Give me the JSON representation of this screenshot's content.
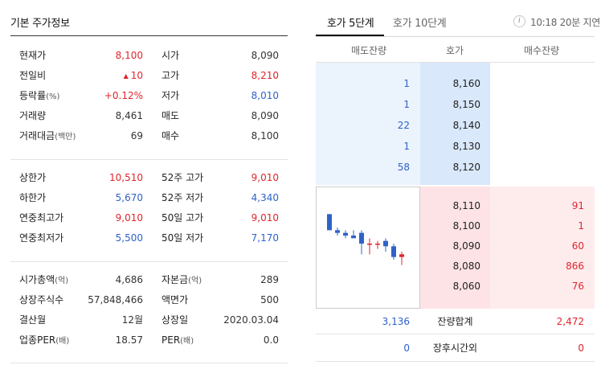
{
  "basic": {
    "title": "기본 주가정보",
    "section1": [
      {
        "l1": "현재가",
        "u1": "",
        "v1": "8,100",
        "c1": "red",
        "l2": "시가",
        "u2": "",
        "v2": "8,090",
        "c2": "dark"
      },
      {
        "l1": "전일비",
        "u1": "",
        "v1": "10",
        "c1": "red",
        "tri": "▲",
        "l2": "고가",
        "u2": "",
        "v2": "8,210",
        "c2": "red"
      },
      {
        "l1": "등락률",
        "u1": "(%)",
        "v1": "+0.12%",
        "c1": "red",
        "l2": "저가",
        "u2": "",
        "v2": "8,010",
        "c2": "blue"
      },
      {
        "l1": "거래량",
        "u1": "",
        "v1": "8,461",
        "c1": "dark",
        "l2": "매도",
        "u2": "",
        "v2": "8,090",
        "c2": "dark"
      },
      {
        "l1": "거래대금",
        "u1": "(백만)",
        "v1": "69",
        "c1": "dark",
        "l2": "매수",
        "u2": "",
        "v2": "8,100",
        "c2": "dark"
      }
    ],
    "section2": [
      {
        "l1": "상한가",
        "u1": "",
        "v1": "10,510",
        "c1": "red",
        "l2": "52주 고가",
        "u2": "",
        "v2": "9,010",
        "c2": "red"
      },
      {
        "l1": "하한가",
        "u1": "",
        "v1": "5,670",
        "c1": "blue",
        "l2": "52주 저가",
        "u2": "",
        "v2": "4,340",
        "c2": "blue"
      },
      {
        "l1": "연중최고가",
        "u1": "",
        "v1": "9,010",
        "c1": "red",
        "l2": "50일 고가",
        "u2": "",
        "v2": "9,010",
        "c2": "red"
      },
      {
        "l1": "연중최저가",
        "u1": "",
        "v1": "5,500",
        "c1": "blue",
        "l2": "50일 저가",
        "u2": "",
        "v2": "7,170",
        "c2": "blue"
      }
    ],
    "section3": [
      {
        "l1": "시가총액",
        "u1": "(억)",
        "v1": "4,686",
        "c1": "dark",
        "l2": "자본금",
        "u2": "(억)",
        "v2": "289",
        "c2": "dark"
      },
      {
        "l1": "상장주식수",
        "u1": "",
        "v1": "57,848,466",
        "c1": "dark",
        "l2": "액면가",
        "u2": "",
        "v2": "500",
        "c2": "dark"
      },
      {
        "l1": "결산월",
        "u1": "",
        "v1": "12월",
        "c1": "dark",
        "l2": "상장일",
        "u2": "",
        "v2": "2020.03.04",
        "c2": "dark"
      },
      {
        "l1": "업종PER",
        "u1": "(배)",
        "v1": "18.57",
        "c1": "dark",
        "l2": "PER",
        "u2": "(배)",
        "v2": "0.0",
        "c2": "dark"
      }
    ]
  },
  "orderbook": {
    "tabs": [
      {
        "label": "호가 5단계",
        "active": true
      },
      {
        "label": "호가 10단계",
        "active": false
      }
    ],
    "info_icon": "info-icon",
    "info_icon_glyph": "i",
    "delay_text": "10:18 20분 지연",
    "headers": {
      "ask": "매도잔량",
      "price": "호가",
      "bid": "매수잔량"
    },
    "asks": [
      {
        "volume": "1",
        "price": "8,160"
      },
      {
        "volume": "1",
        "price": "8,150"
      },
      {
        "volume": "22",
        "price": "8,140"
      },
      {
        "volume": "1",
        "price": "8,130"
      },
      {
        "volume": "58",
        "price": "8,120"
      }
    ],
    "bids": [
      {
        "price": "8,110",
        "volume": "91"
      },
      {
        "price": "8,100",
        "volume": "1"
      },
      {
        "price": "8,090",
        "volume": "60"
      },
      {
        "price": "8,080",
        "volume": "866"
      },
      {
        "price": "8,060",
        "volume": "76"
      }
    ],
    "totals": {
      "ask": "3,136",
      "label": "잔량합계",
      "bid": "2,472"
    },
    "after_hours": {
      "ask": "0",
      "label": "장후시간외",
      "bid": "0"
    },
    "mini_chart": {
      "candles": [
        {
          "o": 8210,
          "c": 8150,
          "h": 8210,
          "l": 8150
        },
        {
          "o": 8150,
          "c": 8140,
          "h": 8160,
          "l": 8130
        },
        {
          "o": 8140,
          "c": 8130,
          "h": 8150,
          "l": 8120
        },
        {
          "o": 8130,
          "c": 8120,
          "h": 8150,
          "l": 8120
        },
        {
          "o": 8140,
          "c": 8100,
          "h": 8150,
          "l": 8060
        },
        {
          "o": 8100,
          "c": 8100,
          "h": 8120,
          "l": 8060
        },
        {
          "o": 8100,
          "c": 8100,
          "h": 8110,
          "l": 8080
        },
        {
          "o": 8110,
          "c": 8090,
          "h": 8120,
          "l": 8070
        },
        {
          "o": 8090,
          "c": 8050,
          "h": 8100,
          "l": 8040
        },
        {
          "o": 8050,
          "c": 8060,
          "h": 8070,
          "l": 8020
        }
      ],
      "colors": {
        "down": "#2f62c9",
        "up": "#e0252c"
      }
    }
  }
}
